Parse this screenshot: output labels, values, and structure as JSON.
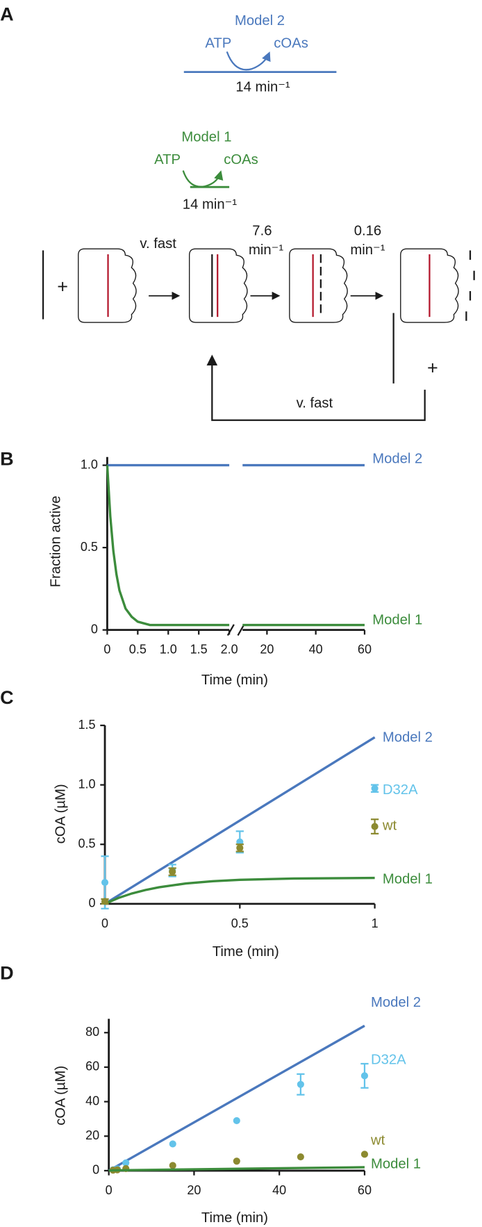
{
  "panel_labels": [
    "A",
    "B",
    "C",
    "D"
  ],
  "diagram": {
    "model2": {
      "name": "Model 2",
      "substrate": "ATP",
      "product": "cOAs",
      "rate": "14 min⁻¹"
    },
    "model1": {
      "name": "Model 1",
      "substrate": "ATP",
      "product": "cOAs",
      "rate": "14 min⁻¹"
    },
    "plus": "+",
    "steps": [
      {
        "rate": "v. fast"
      },
      {
        "rate": [
          "7.6",
          "min⁻¹"
        ]
      },
      {
        "rate": [
          "0.16",
          "min⁻¹"
        ]
      }
    ],
    "recycle": "v. fast"
  },
  "chart_data": [
    {
      "type": "line",
      "xlabel": "Time (min)",
      "ylabel": "Fraction active",
      "xlim": [
        0,
        2
      ],
      "xticks": [
        0,
        0.5,
        {
          "value": 1,
          "label": "1.0"
        },
        1.5,
        {
          "value": 2,
          "label": "2.0"
        }
      ],
      "x2lim": [
        10,
        60
      ],
      "x2ticks": [
        20,
        40,
        60
      ],
      "ylim": [
        0,
        1.05
      ],
      "yticks": [
        0,
        0.5,
        {
          "value": 1,
          "label": "1.0"
        }
      ],
      "series": [
        {
          "name": "Model 2",
          "color": "#4a78bd",
          "mode": "line",
          "x": [
            0,
            2,
            10,
            60
          ],
          "values": [
            1,
            1,
            1,
            1
          ]
        },
        {
          "name": "Model 1",
          "color": "#3c8c3c",
          "mode": "line",
          "x": [
            0,
            0.05,
            0.1,
            0.15,
            0.2,
            0.3,
            0.4,
            0.5,
            0.7,
            1,
            1.5,
            2,
            10,
            60
          ],
          "values": [
            1,
            0.69,
            0.48,
            0.34,
            0.24,
            0.13,
            0.08,
            0.05,
            0.03,
            0.03,
            0.03,
            0.03,
            0.03,
            0.03
          ]
        }
      ]
    },
    {
      "type": "line",
      "xlabel": "Time (min)",
      "ylabel": "cOA (µM)",
      "xlim": [
        0,
        1
      ],
      "xticks": [
        0,
        0.5,
        1
      ],
      "ylim": [
        0,
        1.5
      ],
      "yticks": [
        0,
        0.5,
        {
          "value": 1,
          "label": "1.0"
        },
        1.5
      ],
      "series": [
        {
          "name": "Model 2",
          "color": "#4a78bd",
          "mode": "line",
          "x": [
            0,
            1
          ],
          "values": [
            0,
            1.4
          ]
        },
        {
          "name": "Model 1",
          "color": "#3c8c3c",
          "mode": "line",
          "x": [
            0,
            0.05,
            0.1,
            0.15,
            0.2,
            0.3,
            0.4,
            0.5,
            0.7,
            1
          ],
          "values": [
            0,
            0.049,
            0.087,
            0.116,
            0.139,
            0.171,
            0.19,
            0.202,
            0.213,
            0.218
          ]
        },
        {
          "name": "D32A",
          "color": "#63c3ea",
          "mode": "markers",
          "x": [
            0,
            0.25,
            0.5,
            1
          ],
          "values": [
            0.18,
            0.28,
            0.52,
            0.97
          ],
          "errors": [
            0.22,
            0.05,
            0.09,
            0.03
          ]
        },
        {
          "name": "wt",
          "color": "#8c8a30",
          "mode": "markers",
          "x": [
            0,
            0.25,
            0.5,
            1
          ],
          "values": [
            0.02,
            0.27,
            0.47,
            0.65
          ],
          "errors": [
            0.02,
            0.03,
            0.03,
            0.06
          ]
        }
      ]
    },
    {
      "type": "line",
      "xlabel": "Time (min)",
      "ylabel": "cOA (µM)",
      "xlim": [
        0,
        60
      ],
      "xticks": [
        0,
        20,
        40,
        60
      ],
      "ylim": [
        0,
        88
      ],
      "yticks": [
        0,
        20,
        40,
        60,
        80
      ],
      "series": [
        {
          "name": "Model 2",
          "color": "#4a78bd",
          "mode": "line",
          "x": [
            0,
            60
          ],
          "values": [
            0,
            84
          ]
        },
        {
          "name": "D32A",
          "color": "#63c3ea",
          "mode": "markers",
          "x": [
            1,
            2,
            4,
            15,
            30,
            45,
            60
          ],
          "values": [
            0.5,
            1,
            4.5,
            15.5,
            29,
            50,
            55
          ],
          "errors": [
            null,
            null,
            null,
            null,
            null,
            6,
            7
          ]
        },
        {
          "name": "wt",
          "color": "#8c8a30",
          "mode": "markers",
          "x": [
            1,
            2,
            4,
            15,
            30,
            45,
            60
          ],
          "values": [
            0.3,
            0.5,
            1.2,
            3,
            5.5,
            8,
            9.5
          ]
        },
        {
          "name": "Model 1",
          "color": "#3c8c3c",
          "mode": "line",
          "x": [
            0,
            1,
            60
          ],
          "values": [
            0,
            0.2,
            2
          ]
        }
      ]
    }
  ]
}
